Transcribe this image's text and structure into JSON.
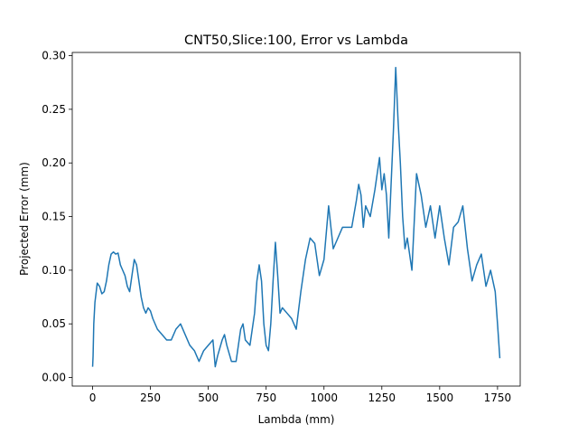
{
  "chart_data": {
    "type": "line",
    "title": "CNT50,Slice:100, Error vs Lambda",
    "x_label": "Lambda (mm)",
    "y_label": "Projected Error (mm)",
    "xlim": [
      -88,
      1848
    ],
    "ylim": [
      -0.008,
      0.303
    ],
    "xticks": [
      0,
      250,
      500,
      750,
      1000,
      1250,
      1500,
      1750
    ],
    "yticks": [
      {
        "value": 0,
        "label": "0.00"
      },
      {
        "value": 0.05,
        "label": "0.05"
      },
      {
        "value": 0.1,
        "label": "0.10"
      },
      {
        "value": 0.15,
        "label": "0.15"
      },
      {
        "value": 0.2,
        "label": "0.20"
      },
      {
        "value": 0.25,
        "label": "0.25"
      },
      {
        "value": 0.3,
        "label": "0.30"
      }
    ],
    "grid": false,
    "series": [
      {
        "color": "#1f77b4",
        "x": [
          0,
          2,
          5,
          10,
          20,
          30,
          40,
          50,
          60,
          70,
          80,
          90,
          100,
          110,
          120,
          130,
          140,
          150,
          160,
          170,
          180,
          190,
          200,
          210,
          220,
          230,
          240,
          250,
          260,
          280,
          300,
          320,
          340,
          360,
          380,
          400,
          420,
          440,
          450,
          460,
          480,
          500,
          520,
          530,
          540,
          560,
          570,
          580,
          600,
          620,
          640,
          650,
          660,
          680,
          700,
          710,
          720,
          730,
          740,
          750,
          760,
          770,
          780,
          790,
          800,
          810,
          820,
          840,
          860,
          880,
          900,
          920,
          940,
          960,
          980,
          1000,
          1020,
          1030,
          1040,
          1060,
          1080,
          1100,
          1120,
          1140,
          1150,
          1160,
          1170,
          1180,
          1200,
          1220,
          1240,
          1250,
          1260,
          1270,
          1280,
          1300,
          1310,
          1320,
          1330,
          1340,
          1350,
          1360,
          1380,
          1400,
          1420,
          1440,
          1460,
          1480,
          1500,
          1520,
          1540,
          1560,
          1580,
          1600,
          1620,
          1640,
          1660,
          1680,
          1700,
          1720,
          1740,
          1750,
          1760
        ],
        "values": [
          0.01,
          0.02,
          0.05,
          0.07,
          0.088,
          0.085,
          0.078,
          0.08,
          0.09,
          0.105,
          0.115,
          0.117,
          0.115,
          0.116,
          0.105,
          0.1,
          0.095,
          0.085,
          0.08,
          0.095,
          0.11,
          0.105,
          0.09,
          0.075,
          0.065,
          0.06,
          0.065,
          0.062,
          0.055,
          0.045,
          0.04,
          0.035,
          0.035,
          0.045,
          0.05,
          0.04,
          0.03,
          0.025,
          0.02,
          0.015,
          0.025,
          0.03,
          0.035,
          0.01,
          0.02,
          0.035,
          0.04,
          0.03,
          0.015,
          0.015,
          0.045,
          0.05,
          0.035,
          0.03,
          0.06,
          0.09,
          0.105,
          0.09,
          0.05,
          0.03,
          0.025,
          0.05,
          0.09,
          0.126,
          0.095,
          0.06,
          0.065,
          0.06,
          0.055,
          0.045,
          0.08,
          0.11,
          0.13,
          0.125,
          0.095,
          0.11,
          0.16,
          0.14,
          0.12,
          0.13,
          0.14,
          0.14,
          0.14,
          0.165,
          0.18,
          0.17,
          0.14,
          0.16,
          0.15,
          0.175,
          0.205,
          0.175,
          0.19,
          0.17,
          0.13,
          0.23,
          0.289,
          0.24,
          0.2,
          0.15,
          0.12,
          0.13,
          0.1,
          0.19,
          0.17,
          0.14,
          0.16,
          0.13,
          0.16,
          0.13,
          0.105,
          0.14,
          0.145,
          0.16,
          0.12,
          0.09,
          0.105,
          0.115,
          0.085,
          0.1,
          0.08,
          0.05,
          0.018
        ]
      }
    ]
  }
}
